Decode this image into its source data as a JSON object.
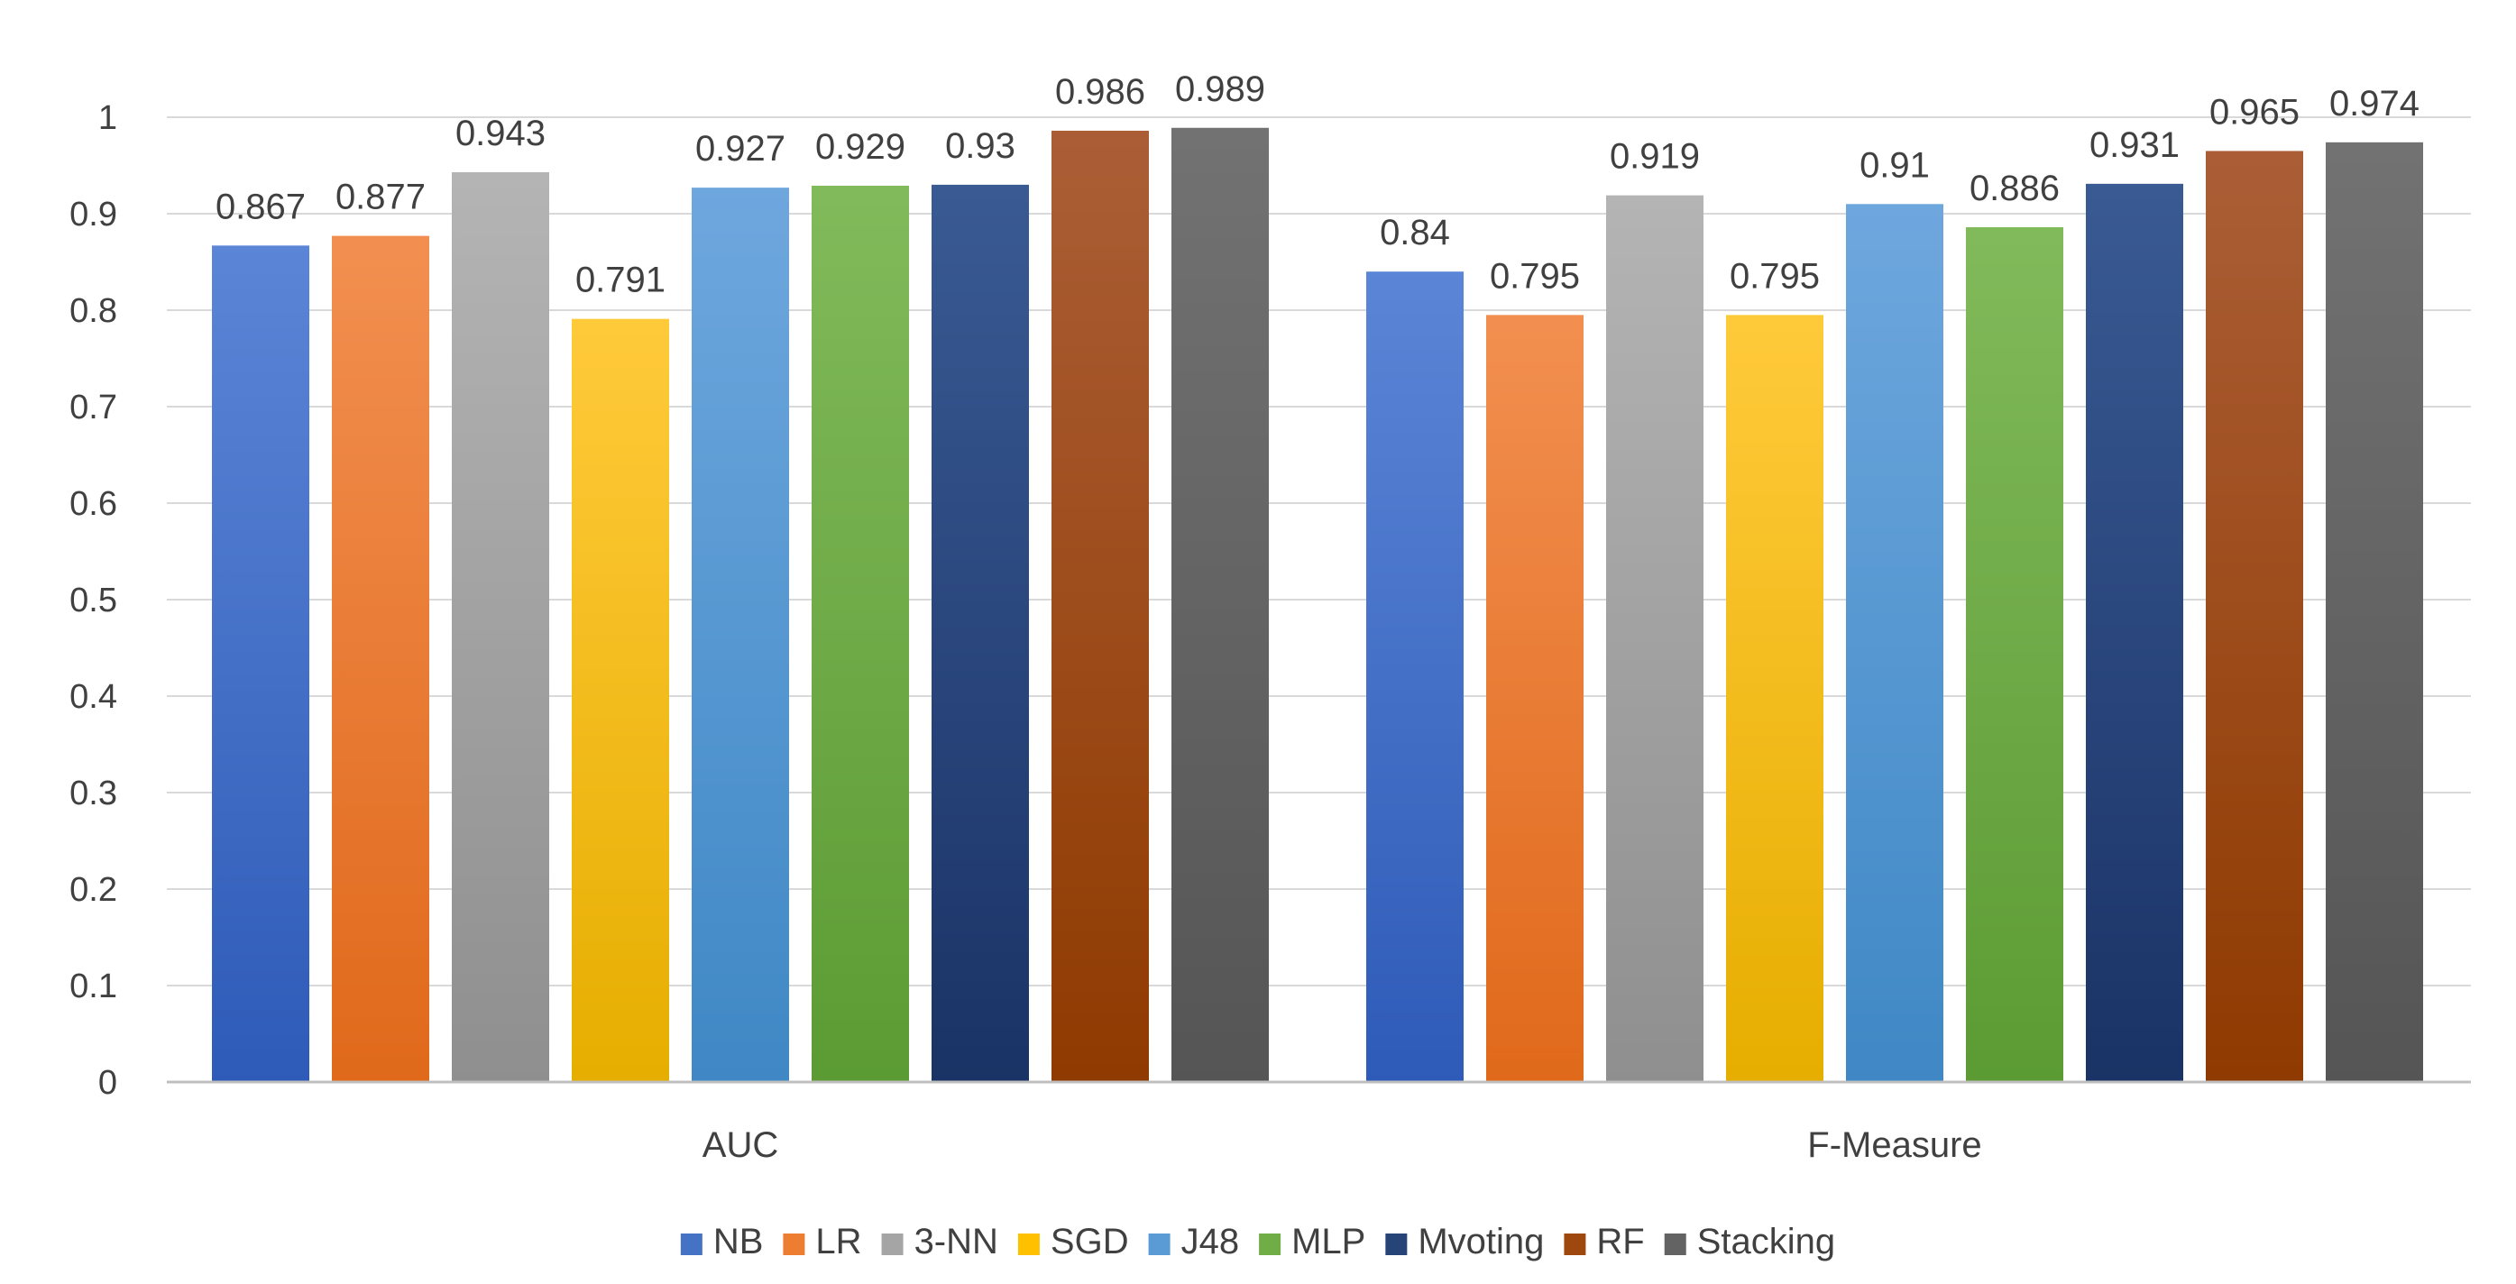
{
  "chart_data": {
    "type": "bar",
    "title": "",
    "xlabel": "",
    "ylabel": "",
    "ylim": [
      0,
      1
    ],
    "yticks": [
      0,
      0.1,
      0.2,
      0.3,
      0.4,
      0.5,
      0.6,
      0.7,
      0.8,
      0.9,
      1
    ],
    "ytick_labels": [
      "0",
      "0.1",
      "0.2",
      "0.3",
      "0.4",
      "0.5",
      "0.6",
      "0.7",
      "0.8",
      "0.9",
      "1"
    ],
    "grid": true,
    "legend_position": "bottom",
    "categories": [
      "AUC",
      "F-Measure"
    ],
    "series": [
      {
        "name": "NB",
        "values": [
          0.867,
          0.84
        ],
        "labels": [
          "0.867",
          "0.84"
        ],
        "color": "#4472C4",
        "color_light": "#5B85D6",
        "color_dark": "#2E5BB8"
      },
      {
        "name": "LR",
        "values": [
          0.877,
          0.795
        ],
        "labels": [
          "0.877",
          "0.795"
        ],
        "color": "#ED7D31",
        "color_light": "#F28F50",
        "color_dark": "#E0691B"
      },
      {
        "name": "3-NN",
        "values": [
          0.943,
          0.919
        ],
        "labels": [
          "0.943",
          "0.919"
        ],
        "color": "#A5A5A5",
        "color_light": "#B4B4B4",
        "color_dark": "#8F8F8F"
      },
      {
        "name": "SGD",
        "values": [
          0.791,
          0.795
        ],
        "labels": [
          "0.791",
          "0.795"
        ],
        "color": "#FFC000",
        "color_light": "#FFCA3A",
        "color_dark": "#E6AE00"
      },
      {
        "name": "J48",
        "values": [
          0.927,
          0.91
        ],
        "labels": [
          "0.927",
          "0.91"
        ],
        "color": "#5B9BD5",
        "color_light": "#6EA7DE",
        "color_dark": "#3F88C5"
      },
      {
        "name": "MLP",
        "values": [
          0.929,
          0.886
        ],
        "labels": [
          "0.929",
          "0.886"
        ],
        "color": "#70AD47",
        "color_light": "#81BA5A",
        "color_dark": "#5C9B34"
      },
      {
        "name": "Mvoting",
        "values": [
          0.93,
          0.931
        ],
        "labels": [
          "0.93",
          "0.931"
        ],
        "color": "#264478",
        "color_light": "#3A5A94",
        "color_dark": "#1A3366"
      },
      {
        "name": "RF",
        "values": [
          0.986,
          0.965
        ],
        "labels": [
          "0.986",
          "0.965"
        ],
        "color": "#9E480E",
        "color_light": "#AB5E36",
        "color_dark": "#8F3A00"
      },
      {
        "name": "Stacking",
        "values": [
          0.989,
          0.974
        ],
        "labels": [
          "0.989",
          "0.974"
        ],
        "color": "#636363",
        "color_light": "#727272",
        "color_dark": "#555555"
      }
    ]
  }
}
